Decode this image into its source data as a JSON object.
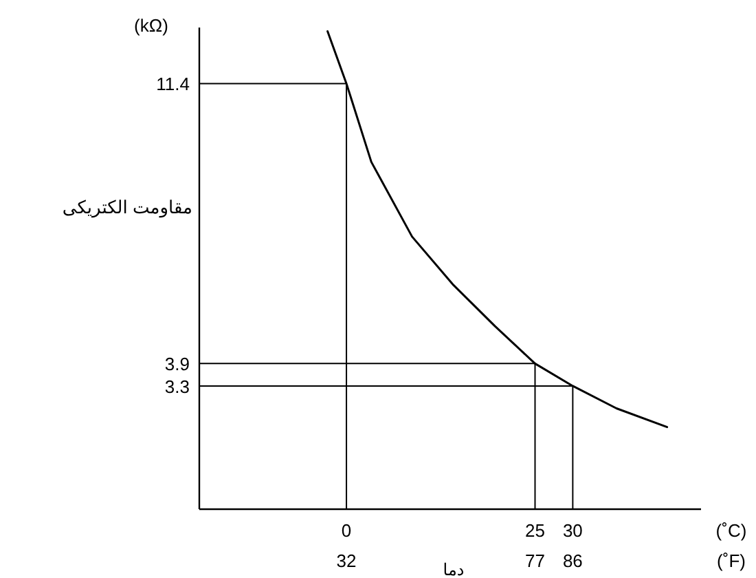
{
  "chart_data": {
    "type": "line",
    "xlabel": "دما",
    "ylabel": "مقاومت الکتریکی",
    "annotations": [
      "(kΩ)",
      "(˚C)",
      "(˚F)"
    ],
    "x": [
      -2.5,
      0,
      3.3,
      8.7,
      14.2,
      19.7,
      25,
      30,
      35.8,
      42.5
    ],
    "series": [
      {
        "color": "#000000",
        "values": [
          12.8,
          11.4,
          9.3,
          7.3,
          6.0,
          4.9,
          3.9,
          3.3,
          2.7,
          2.2
        ]
      }
    ],
    "xlim": [
      -19.5,
      47
    ],
    "xticks": [
      0,
      25,
      30
    ],
    "x2lim": [
      -3.1,
      116.6
    ],
    "x2ticks": [
      32,
      77,
      86
    ],
    "ylim": [
      0,
      12.9
    ],
    "yticks": [
      3.3,
      3.9,
      11.4
    ],
    "ref_lines": [
      {
        "axis": "y",
        "value": 11.4
      },
      {
        "axis": "y",
        "value": 3.9
      },
      {
        "axis": "y",
        "value": 3.3
      },
      {
        "axis": "x",
        "value": 0
      },
      {
        "axis": "x",
        "value": 25
      },
      {
        "axis": "x",
        "value": 30
      }
    ]
  }
}
